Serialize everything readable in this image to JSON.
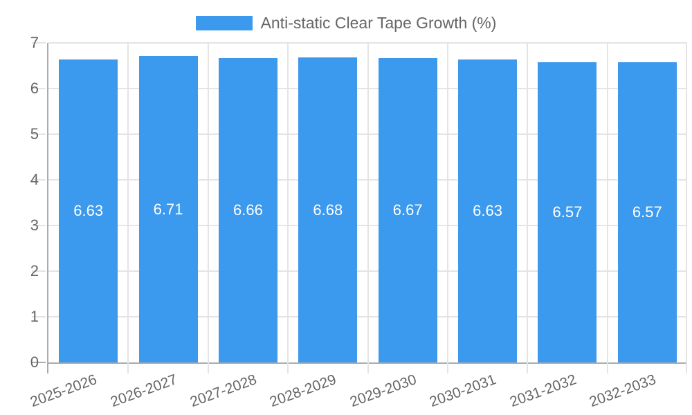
{
  "chart_data": {
    "type": "bar",
    "title": "Anti-static Clear Tape Growth (%)",
    "legend_entries": [
      "Anti-static Clear Tape Growth (%)"
    ],
    "legend_position": "top-center",
    "categories": [
      "2025-2026",
      "2026-2027",
      "2027-2028",
      "2028-2029",
      "2029-2030",
      "2030-2031",
      "2031-2032",
      "2032-2033"
    ],
    "values": [
      6.63,
      6.71,
      6.66,
      6.68,
      6.67,
      6.63,
      6.57,
      6.57
    ],
    "value_labels": [
      "6.63",
      "6.71",
      "6.66",
      "6.68",
      "6.67",
      "6.63",
      "6.57",
      "6.57"
    ],
    "xlabel": "",
    "ylabel": "",
    "ylim": [
      0,
      7
    ],
    "yticks": [
      0,
      1,
      2,
      3,
      4,
      5,
      6,
      7
    ],
    "grid": true,
    "colors": {
      "bar": "#3B99EE",
      "grid": "#E4E4E4",
      "axis": "#ABABAB",
      "tick_text": "#666666",
      "legend_text": "#666666",
      "bar_label_text": "#FFFFFF",
      "background": "#FFFFFF"
    }
  }
}
